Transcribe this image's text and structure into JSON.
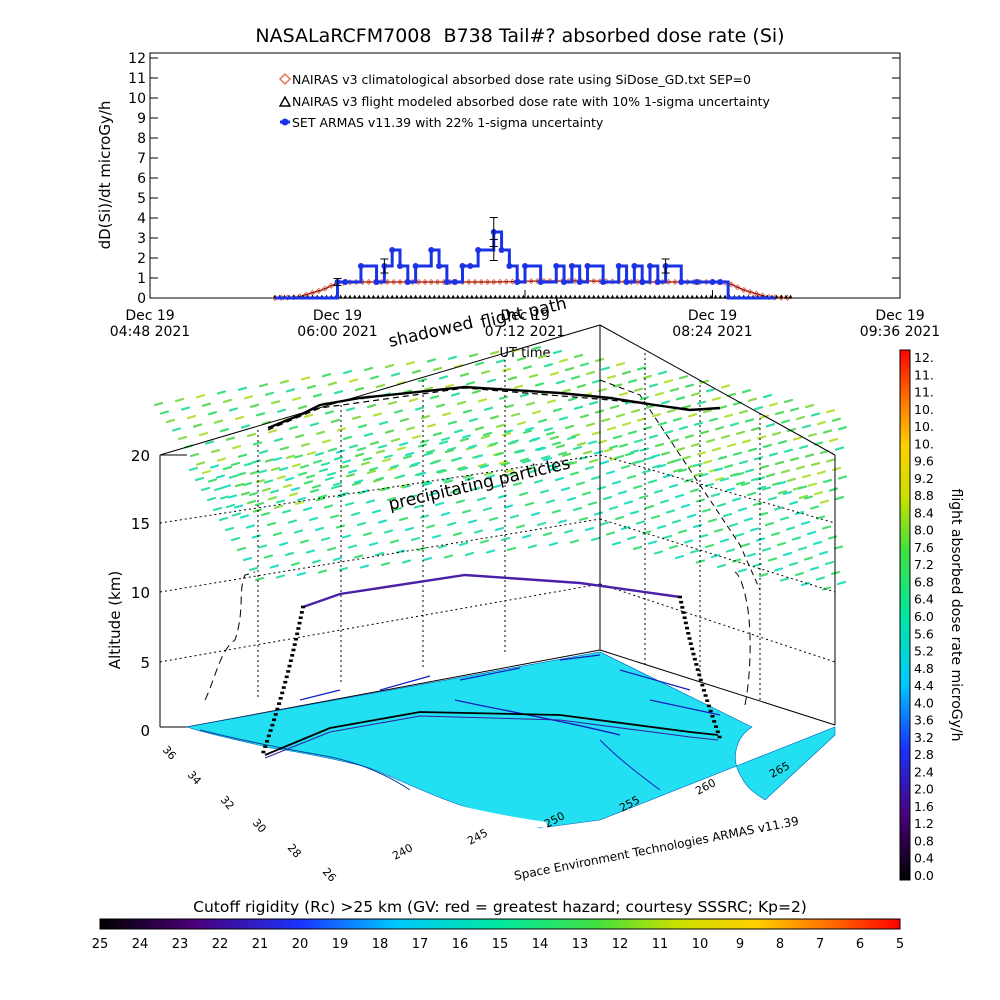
{
  "chart_data": [
    {
      "type": "line",
      "title": "NASALaRCFM7008  B738 Tail#? absorbed dose rate (Si)",
      "ylabel": "dD(Si)/dt microGy/h",
      "xlabel": "UT time",
      "ylim": [
        0,
        12
      ],
      "yticks": [
        "0",
        "1",
        "2",
        "3",
        "4",
        "5",
        "6",
        "7",
        "8",
        "9",
        "10",
        "11",
        "12"
      ],
      "xticks": [
        {
          "line1": "Dec 19",
          "line2": "04:48 2021"
        },
        {
          "line1": "Dec 19",
          "line2": "06:00 2021"
        },
        {
          "line1": "Dec 19",
          "line2": "07:12 2021"
        },
        {
          "line1": "Dec 19",
          "line2": "08:24 2021"
        },
        {
          "line1": "Dec 19",
          "line2": "09:36 2021"
        }
      ],
      "x_units": "hours UT on Dec 19 2021",
      "xlim": [
        4.8,
        9.6
      ],
      "legend": [
        {
          "label": "NAIRAS v3 climatological absorbed dose rate using SiDose_GD.txt SEP=0",
          "color": "#e07050",
          "marker": "diamond"
        },
        {
          "label": "NAIRAS v3 flight modeled absorbed dose rate with 10% 1-sigma uncertainty",
          "color": "#000000",
          "marker": "triangle"
        },
        {
          "label": "SET ARMAS v11.39 with 22% 1-sigma uncertainty",
          "color": "#1a33e6",
          "marker": "circle"
        }
      ],
      "series": [
        {
          "name": "NAIRAS v3 climatological absorbed dose rate using SiDose_GD.txt SEP=0",
          "x": [
            5.6,
            5.75,
            5.9,
            6.0,
            6.1,
            6.3,
            6.6,
            7.0,
            7.3,
            7.6,
            7.9,
            8.2,
            8.4,
            8.5,
            8.6,
            8.75,
            8.9
          ],
          "values": [
            0,
            0.05,
            0.4,
            0.75,
            0.8,
            0.8,
            0.8,
            0.8,
            0.85,
            0.85,
            0.8,
            0.8,
            0.8,
            0.75,
            0.4,
            0.05,
            0
          ]
        },
        {
          "name": "NAIRAS v3 flight modeled absorbed dose rate with 10% 1-sigma uncertainty",
          "x": [
            5.6,
            5.8,
            6.0,
            6.2,
            6.5,
            6.8,
            7.1,
            7.4,
            7.7,
            8.0,
            8.3,
            8.6,
            8.9
          ],
          "values": [
            0.02,
            0.02,
            0.02,
            0.02,
            0.02,
            0.02,
            0.02,
            0.02,
            0.02,
            0.02,
            0.02,
            0.02,
            0.02
          ]
        },
        {
          "name": "SET ARMAS v11.39 with 22% 1-sigma uncertainty",
          "x": [
            5.6,
            5.7,
            5.85,
            6.0,
            6.05,
            6.15,
            6.25,
            6.3,
            6.35,
            6.4,
            6.45,
            6.5,
            6.6,
            6.65,
            6.7,
            6.75,
            6.8,
            6.85,
            6.9,
            7.0,
            7.05,
            7.1,
            7.15,
            7.2,
            7.3,
            7.4,
            7.45,
            7.5,
            7.55,
            7.6,
            7.7,
            7.8,
            7.85,
            7.9,
            7.95,
            8.0,
            8.05,
            8.1,
            8.2,
            8.3,
            8.4,
            8.45,
            8.5,
            8.6,
            8.8
          ],
          "values": [
            0,
            0,
            0,
            0.8,
            0.8,
            1.6,
            0.8,
            1.6,
            2.4,
            1.6,
            0.8,
            1.6,
            2.4,
            1.6,
            0.8,
            0.8,
            1.6,
            1.6,
            2.4,
            3.3,
            2.4,
            1.6,
            0.8,
            1.6,
            0.8,
            1.6,
            0.8,
            1.6,
            0.8,
            1.6,
            0.8,
            1.6,
            0.8,
            1.6,
            0.8,
            1.6,
            0.8,
            1.6,
            0.8,
            0.8,
            0.8,
            0.8,
            0,
            0,
            0
          ]
        }
      ]
    },
    {
      "type": "scatter",
      "title": "",
      "zlabel": "Altitude (km)",
      "zlim": [
        0,
        20
      ],
      "zticks": [
        "0",
        "5",
        "10",
        "15",
        "20"
      ],
      "lat_ticks": [
        "36",
        "34",
        "32",
        "30",
        "28",
        "26"
      ],
      "lon_ticks": [
        "240",
        "245",
        "250",
        "255",
        "260",
        "265"
      ],
      "annotations": [
        "flight path",
        "shadowed",
        "precipitating particles"
      ],
      "credit": "Space Environment Technologies ARMAS v11.39"
    }
  ],
  "colorbar_right": {
    "label": "flight absorbed dose rate microGy/h",
    "ticks": [
      "12.",
      "11.",
      "11.",
      "10.",
      "10.",
      "10.",
      "9.6",
      "9.2",
      "8.8",
      "8.4",
      "8.0",
      "7.6",
      "7.2",
      "6.8",
      "6.4",
      "6.0",
      "5.6",
      "5.2",
      "4.8",
      "4.4",
      "4.0",
      "3.6",
      "3.2",
      "2.8",
      "2.4",
      "2.0",
      "1.6",
      "1.2",
      "0.8",
      "0.4",
      "0.0"
    ]
  },
  "colorbar_bottom": {
    "title": "Cutoff rigidity (Rc) >25 km (GV: red = greatest hazard; courtesy SSSRC; Kp=2)",
    "ticks": [
      "25",
      "24",
      "23",
      "22",
      "21",
      "20",
      "19",
      "18",
      "17",
      "16",
      "15",
      "14",
      "13",
      "12",
      "11",
      "10",
      "9",
      "8",
      "7",
      "6",
      "5"
    ]
  }
}
